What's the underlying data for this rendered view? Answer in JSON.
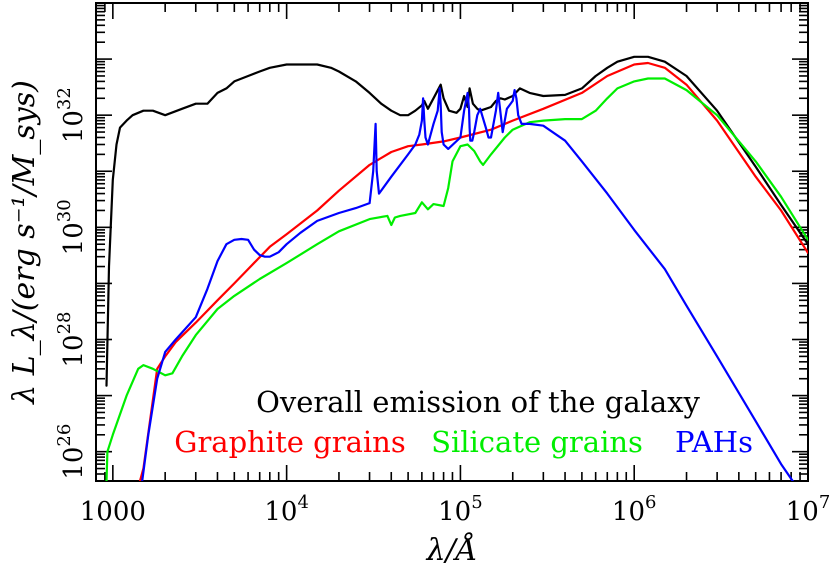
{
  "chart_data": {
    "type": "line",
    "title": "",
    "xlabel": "λ/Å",
    "ylabel": "λ L_λ/(erg s⁻¹/M_sys)",
    "x_scale": "log",
    "y_scale": "log",
    "xlim": [
      800,
      10000000
    ],
    "ylim": [
      3e+25,
      1e+34
    ],
    "grid": false,
    "x_ticks": [
      {
        "value": 1000,
        "label": "1000"
      },
      {
        "value": 10000,
        "label": "10",
        "exp": "4"
      },
      {
        "value": 100000,
        "label": "10",
        "exp": "5"
      },
      {
        "value": 1000000,
        "label": "10",
        "exp": "6"
      },
      {
        "value": 10000000,
        "label": "10",
        "exp": "7"
      }
    ],
    "y_ticks": [
      {
        "value": 1e+26,
        "label": "10",
        "exp": "26"
      },
      {
        "value": 1e+28,
        "label": "10",
        "exp": "28"
      },
      {
        "value": 1e+30,
        "label": "10",
        "exp": "30"
      },
      {
        "value": 1e+32,
        "label": "10",
        "exp": "32"
      }
    ],
    "legend_placement": "bottom-right",
    "legend_entries": [
      {
        "text": "Overall emission of the galaxy",
        "color": "#000000"
      },
      {
        "text": "Graphite grains",
        "color": "#ff0000"
      },
      {
        "text": "Silicate grains",
        "color": "#00ee00"
      },
      {
        "text": "PAHs",
        "color": "#0000ff"
      }
    ],
    "series": [
      {
        "name": "Overall emission of the galaxy",
        "color": "#000000",
        "x": [
          920,
          950,
          1000,
          1050,
          1100,
          1200,
          1300,
          1500,
          1700,
          2000,
          2500,
          3000,
          3500,
          4000,
          4500,
          5000,
          6000,
          7000,
          8000,
          10000,
          12000,
          15000,
          18000,
          20000,
          25000,
          30000,
          35000,
          40000,
          45000,
          50000,
          55000,
          60000,
          62000,
          65000,
          70000,
          77000,
          80000,
          86000,
          95000,
          100000,
          105000,
          110000,
          113000,
          118000,
          125000,
          130000,
          140000,
          150000,
          160000,
          170000,
          180000,
          200000,
          220000,
          250000,
          300000,
          400000,
          500000,
          600000,
          700000,
          800000,
          1000000,
          1200000,
          1500000,
          2000000,
          3000000,
          5000000,
          7000000,
          10000000
        ],
        "y": [
          1.5e+27,
          2e+29,
          7e+30,
          3e+31,
          6e+31,
          8e+31,
          1e+32,
          1.2e+32,
          1.2e+32,
          1e+32,
          1.3e+32,
          1.6e+32,
          1.6e+32,
          2.5e+32,
          3e+32,
          4e+32,
          5e+32,
          6e+32,
          7e+32,
          8e+32,
          8e+32,
          8e+32,
          7e+32,
          6e+32,
          4e+32,
          2.5e+32,
          1.6e+32,
          1.2e+32,
          1e+32,
          1e+32,
          1.2e+32,
          1.5e+32,
          1.8e+32,
          1.3e+32,
          2e+32,
          3.5e+32,
          2e+32,
          1.2e+32,
          1.1e+32,
          1.3e+32,
          2.2e+32,
          1.4e+32,
          3e+32,
          1.6e+32,
          1.3e+32,
          1.2e+32,
          1.3e+32,
          1.4e+32,
          1.8e+32,
          2e+32,
          1.9e+32,
          2.2e+32,
          3e+32,
          2.5e+32,
          2.2e+32,
          2.3e+32,
          3e+32,
          5e+32,
          7e+32,
          9e+32,
          1.1e+33,
          1.1e+33,
          9e+32,
          5e+32,
          1.2e+32,
          1.2e+31,
          2.5e+30,
          5e+29
        ]
      },
      {
        "name": "Graphite grains",
        "color": "#ff0000",
        "x": [
          1300,
          1500,
          1800,
          2000,
          2300,
          3000,
          4000,
          5000,
          6000,
          8000,
          10000,
          15000,
          20000,
          30000,
          40000,
          50000,
          60000,
          80000,
          100000,
          150000,
          200000,
          300000,
          500000,
          700000,
          1000000,
          1200000,
          1500000,
          2000000,
          3000000,
          5000000,
          7000000,
          10000000
        ],
        "y": [
          1e+25,
          5e+25,
          3e+27,
          5e+27,
          9e+27,
          2e+28,
          5e+28,
          1e+29,
          1.8e+29,
          4.5e+29,
          7.5e+29,
          2e+30,
          4.5e+30,
          1.3e+31,
          2.2e+31,
          2.8e+31,
          3e+31,
          3.4e+31,
          4e+31,
          5.5e+31,
          8e+31,
          1.3e+32,
          2.5e+32,
          5e+32,
          8e+32,
          8.5e+32,
          7e+32,
          3.5e+32,
          8e+31,
          8e+30,
          2e+30,
          3.5e+29
        ]
      },
      {
        "name": "Silicate grains",
        "color": "#00ee00",
        "x": [
          910,
          930,
          1000,
          1200,
          1400,
          1500,
          1700,
          2000,
          2200,
          2500,
          3000,
          4000,
          5000,
          7000,
          10000,
          15000,
          20000,
          30000,
          38000,
          40000,
          42000,
          45000,
          55000,
          60000,
          65000,
          70000,
          80000,
          85000,
          90000,
          100000,
          110000,
          120000,
          130000,
          135000,
          150000,
          180000,
          200000,
          250000,
          300000,
          400000,
          500000,
          600000,
          700000,
          800000,
          1000000,
          1200000,
          1500000,
          2000000,
          3000000,
          5000000,
          7000000,
          10000000
        ],
        "y": [
          1e+25,
          1e+26,
          2e+26,
          1e+27,
          3e+27,
          3.5e+27,
          3e+27,
          2.3e+27,
          2.5e+27,
          5e+27,
          1.2e+28,
          3.5e+28,
          6e+28,
          1.2e+29,
          2.3e+29,
          5e+29,
          8.5e+29,
          1.4e+30,
          1.6e+30,
          1.1e+30,
          1.5e+30,
          1.6e+30,
          1.8e+30,
          2.8e+30,
          2.1e+30,
          2.6e+30,
          2.4e+30,
          5e+30,
          1.5e+31,
          2.8e+31,
          3e+31,
          2.3e+31,
          1.5e+31,
          1.3e+31,
          2e+31,
          4e+31,
          5.5e+31,
          7.5e+31,
          8e+31,
          8.5e+31,
          8.5e+31,
          1.2e+32,
          2e+32,
          3e+32,
          4e+32,
          4.5e+32,
          4.5e+32,
          2.8e+32,
          1e+32,
          1.5e+31,
          3.5e+30,
          6e+29
        ]
      },
      {
        "name": "PAHs",
        "color": "#0000ff",
        "x": [
          1450,
          1600,
          1800,
          2000,
          2300,
          3000,
          3500,
          4000,
          4500,
          5000,
          5500,
          6000,
          6500,
          7000,
          7500,
          8000,
          9000,
          10000,
          12000,
          15000,
          20000,
          25000,
          30000,
          31500,
          32500,
          33000,
          34000,
          40000,
          50000,
          55000,
          58000,
          60000,
          61000,
          62000,
          63000,
          65000,
          70000,
          74000,
          76000,
          77000,
          78000,
          80000,
          85000,
          100000,
          105000,
          110000,
          112000,
          113000,
          114000,
          117000,
          120000,
          125000,
          130000,
          140000,
          145000,
          150000,
          160000,
          165000,
          175000,
          185000,
          200000,
          205000,
          210000,
          215000,
          225000,
          250000,
          300000,
          400000,
          500000,
          700000,
          1000000,
          1500000,
          2000000,
          3000000,
          5000000,
          7000000,
          10000000
        ],
        "y": [
          2e+25,
          2e+26,
          2e+27,
          6e+27,
          1e+28,
          2.5e+28,
          8e+28,
          2.5e+29,
          5e+29,
          6e+29,
          6.2e+29,
          6e+29,
          4e+29,
          3.2e+29,
          3e+29,
          3e+29,
          3.6e+29,
          5e+29,
          8e+29,
          1.3e+30,
          1.8e+30,
          2.2e+30,
          2.7e+30,
          1e+31,
          7e+31,
          1e+31,
          4e+30,
          8e+30,
          2e+31,
          3e+31,
          4.5e+31,
          8e+31,
          2e+32,
          8e+31,
          4e+31,
          3e+31,
          7e+31,
          1.2e+32,
          3e+32,
          1.5e+32,
          5e+31,
          3e+31,
          2.5e+31,
          4e+31,
          1.2e+32,
          2.5e+32,
          1.3e+32,
          6e+31,
          3.5e+31,
          3.5e+31,
          5e+31,
          1e+32,
          1.3e+32,
          6e+31,
          4e+31,
          4e+31,
          1.2e+32,
          2.5e+32,
          5e+31,
          1.3e+32,
          1.8e+32,
          2.8e+32,
          2e+32,
          1e+32,
          7e+31,
          7e+31,
          6.5e+31,
          3.5e+31,
          1.5e+31,
          4e+30,
          9e+29,
          1.8e+29,
          4e+28,
          5e+27,
          3.5e+26,
          6e+25,
          1.2e+25
        ]
      }
    ]
  }
}
